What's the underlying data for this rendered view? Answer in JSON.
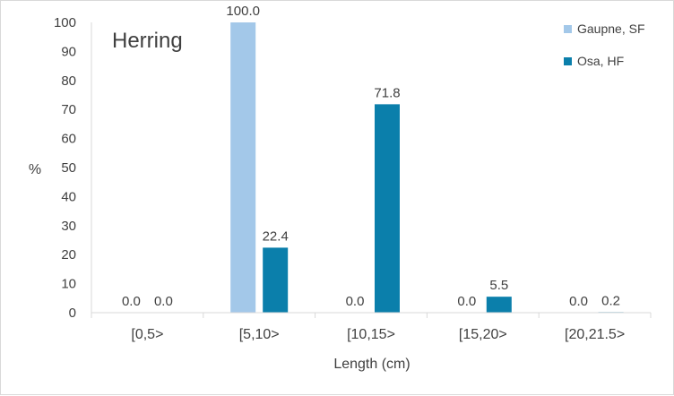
{
  "chart_data": {
    "type": "bar",
    "title": "Herring",
    "xlabel": "Length (cm)",
    "ylabel": "%",
    "ylim": [
      0,
      100
    ],
    "yticks": [
      0,
      10,
      20,
      30,
      40,
      50,
      60,
      70,
      80,
      90,
      100
    ],
    "categories": [
      "[0,5>",
      "[5,10>",
      "[10,15>",
      "[15,20>",
      "[20,21.5>"
    ],
    "series": [
      {
        "name": "Gaupne, SF",
        "color": "#a3c8e9",
        "values": [
          0.0,
          100.0,
          0.0,
          0.0,
          0.0
        ],
        "labels": [
          "0.0",
          "100.0",
          "0.0",
          "0.0",
          "0.0"
        ]
      },
      {
        "name": "Osa, HF",
        "color": "#0b7fab",
        "values": [
          0.0,
          22.4,
          71.8,
          5.5,
          0.2
        ],
        "labels": [
          "0.0",
          "22.4",
          "71.8",
          "5.5",
          "0.2"
        ]
      }
    ],
    "grid": false,
    "legend_position": "top-right"
  }
}
